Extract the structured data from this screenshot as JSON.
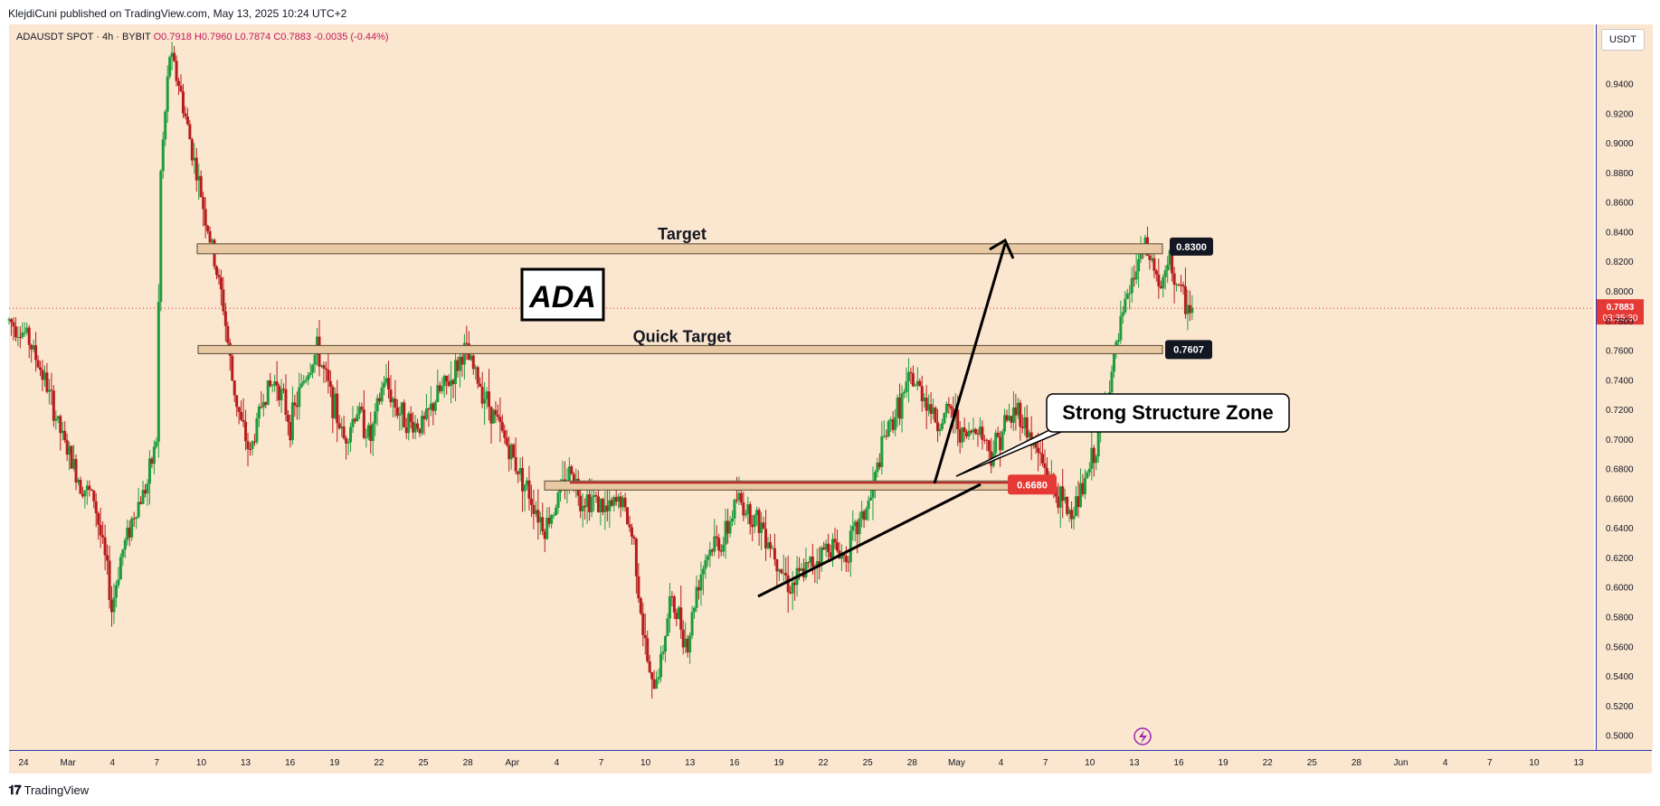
{
  "header": {
    "publisher": "KlejdiCuni published on TradingView.com, May 13, 2025 10:24 UTC+2"
  },
  "legend": {
    "symbol": "ADAUSDT SPOT · 4h · BYBIT",
    "open": "O0.7918",
    "high": "H0.7960",
    "low": "L0.7874",
    "close": "C0.7883",
    "change": "-0.0035 (-0.44%)"
  },
  "currency_button": "USDT",
  "footer": {
    "brand": "TradingView"
  },
  "colors": {
    "background": "#fbe6cf",
    "up": "#1e9c3c",
    "down": "#b71c1c",
    "zone_fill": "#e8c9a4",
    "price_label": "#e53935",
    "axis_line": "#2f39a8"
  },
  "chart_data": {
    "type": "candlestick",
    "title": "",
    "xlabel": "",
    "ylabel": "",
    "ylim": [
      0.49,
      0.98
    ],
    "price_ticks": [
      "0.9400",
      "0.9200",
      "0.9000",
      "0.8800",
      "0.8600",
      "0.8400",
      "0.8200",
      "0.8000",
      "0.7800",
      "0.7600",
      "0.7400",
      "0.7200",
      "0.7000",
      "0.6800",
      "0.6600",
      "0.6400",
      "0.6200",
      "0.6000",
      "0.5800",
      "0.5600",
      "0.5400",
      "0.5200",
      "0.5000"
    ],
    "time_ticks": [
      "24",
      "Mar",
      "4",
      "7",
      "10",
      "13",
      "16",
      "19",
      "22",
      "25",
      "28",
      "Apr",
      "4",
      "7",
      "10",
      "13",
      "16",
      "19",
      "22",
      "25",
      "28",
      "May",
      "4",
      "7",
      "10",
      "13",
      "16",
      "19",
      "22",
      "25",
      "28",
      "Jun",
      "4",
      "7",
      "10",
      "13"
    ],
    "current_price": {
      "value": 0.7883,
      "label": "0.7883",
      "countdown": "03:35:30"
    },
    "levels": [
      {
        "name": "Target",
        "label": "Target",
        "value": 0.83,
        "value_label": "0.8300"
      },
      {
        "name": "Quick Target",
        "label": "Quick Target",
        "value": 0.7607,
        "value_label": "0.7607"
      },
      {
        "name": "Structure",
        "label": "",
        "value": 0.668,
        "value_label": "0.6680"
      }
    ],
    "annotations": {
      "logo_box": "ADA",
      "callout": "Strong Structure Zone"
    },
    "price_path": [
      [
        0,
        0.78
      ],
      [
        4,
        0.77
      ],
      [
        8,
        0.74
      ],
      [
        12,
        0.7
      ],
      [
        16,
        0.67
      ],
      [
        19,
        0.66
      ],
      [
        22,
        0.61
      ],
      [
        23,
        0.585
      ],
      [
        25,
        0.62
      ],
      [
        28,
        0.65
      ],
      [
        31,
        0.67
      ],
      [
        33,
        0.7
      ],
      [
        34,
        0.88
      ],
      [
        36,
        0.96
      ],
      [
        38,
        0.94
      ],
      [
        40,
        0.91
      ],
      [
        42,
        0.88
      ],
      [
        44,
        0.85
      ],
      [
        46,
        0.82
      ],
      [
        48,
        0.79
      ],
      [
        50,
        0.74
      ],
      [
        52,
        0.71
      ],
      [
        54,
        0.69
      ],
      [
        57,
        0.73
      ],
      [
        60,
        0.74
      ],
      [
        63,
        0.71
      ],
      [
        66,
        0.74
      ],
      [
        69,
        0.76
      ],
      [
        72,
        0.73
      ],
      [
        75,
        0.7
      ],
      [
        78,
        0.72
      ],
      [
        81,
        0.7
      ],
      [
        84,
        0.74
      ],
      [
        87,
        0.72
      ],
      [
        90,
        0.71
      ],
      [
        93,
        0.71
      ],
      [
        96,
        0.73
      ],
      [
        99,
        0.74
      ],
      [
        102,
        0.76
      ],
      [
        105,
        0.74
      ],
      [
        108,
        0.72
      ],
      [
        111,
        0.7
      ],
      [
        114,
        0.68
      ],
      [
        117,
        0.66
      ],
      [
        120,
        0.64
      ],
      [
        123,
        0.66
      ],
      [
        126,
        0.68
      ],
      [
        128,
        0.66
      ],
      [
        131,
        0.66
      ],
      [
        134,
        0.65
      ],
      [
        137,
        0.66
      ],
      [
        140,
        0.63
      ],
      [
        142,
        0.57
      ],
      [
        144,
        0.53
      ],
      [
        146,
        0.55
      ],
      [
        148,
        0.59
      ],
      [
        150,
        0.58
      ],
      [
        152,
        0.56
      ],
      [
        154,
        0.6
      ],
      [
        156,
        0.62
      ],
      [
        158,
        0.63
      ],
      [
        160,
        0.63
      ],
      [
        163,
        0.66
      ],
      [
        166,
        0.65
      ],
      [
        169,
        0.64
      ],
      [
        172,
        0.62
      ],
      [
        175,
        0.6
      ],
      [
        178,
        0.61
      ],
      [
        181,
        0.62
      ],
      [
        184,
        0.63
      ],
      [
        187,
        0.62
      ],
      [
        190,
        0.64
      ],
      [
        193,
        0.66
      ],
      [
        196,
        0.7
      ],
      [
        199,
        0.72
      ],
      [
        202,
        0.74
      ],
      [
        205,
        0.73
      ],
      [
        208,
        0.71
      ],
      [
        211,
        0.72
      ],
      [
        214,
        0.7
      ],
      [
        217,
        0.71
      ],
      [
        220,
        0.69
      ],
      [
        223,
        0.71
      ],
      [
        226,
        0.72
      ],
      [
        229,
        0.7
      ],
      [
        232,
        0.68
      ],
      [
        235,
        0.66
      ],
      [
        238,
        0.65
      ],
      [
        241,
        0.67
      ],
      [
        244,
        0.7
      ],
      [
        246,
        0.73
      ],
      [
        248,
        0.76
      ],
      [
        250,
        0.79
      ],
      [
        252,
        0.81
      ],
      [
        254,
        0.83
      ],
      [
        256,
        0.82
      ],
      [
        258,
        0.8
      ],
      [
        260,
        0.82
      ],
      [
        262,
        0.8
      ],
      [
        264,
        0.79
      ],
      [
        265,
        0.788
      ]
    ],
    "x_domain": [
      0,
      355
    ]
  }
}
